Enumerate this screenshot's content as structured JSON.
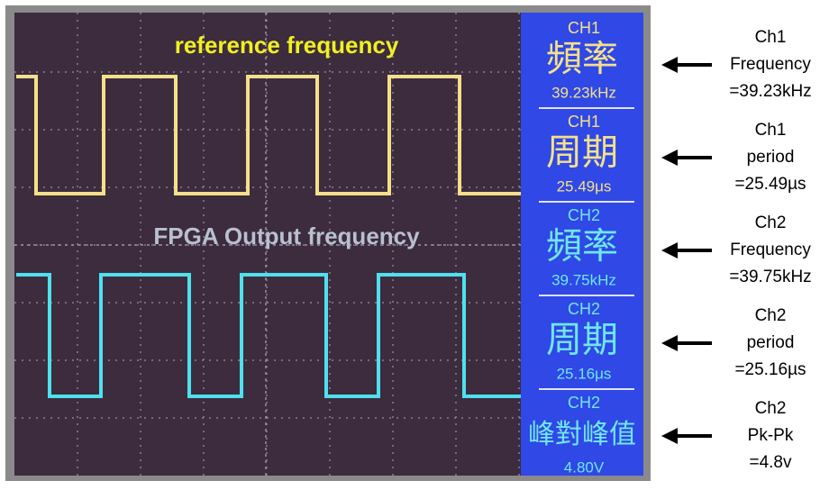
{
  "waveform_labels": {
    "reference": "reference frequency",
    "output": "FPGA Output frequency"
  },
  "readouts": [
    {
      "channel": "CH1",
      "label": "頻率",
      "value": "39.23kHz"
    },
    {
      "channel": "CH1",
      "label": "周期",
      "value": "25.49μs"
    },
    {
      "channel": "CH2",
      "label": "頻率",
      "value": "39.75kHz"
    },
    {
      "channel": "CH2",
      "label": "周期",
      "value": "25.16μs"
    },
    {
      "channel": "CH2",
      "label": "峰對峰值",
      "value": "4.80V"
    }
  ],
  "annotations": [
    {
      "lines": [
        "Ch1",
        "Frequency",
        "=39.23kHz"
      ]
    },
    {
      "lines": [
        "Ch1",
        "period",
        "=25.49µs"
      ]
    },
    {
      "lines": [
        "Ch2",
        "Frequency",
        "=39.75kHz"
      ]
    },
    {
      "lines": [
        "Ch2",
        "period",
        "=25.16µs"
      ]
    },
    {
      "lines": [
        "Ch2",
        "Pk-Pk",
        "=4.8v"
      ]
    }
  ]
}
